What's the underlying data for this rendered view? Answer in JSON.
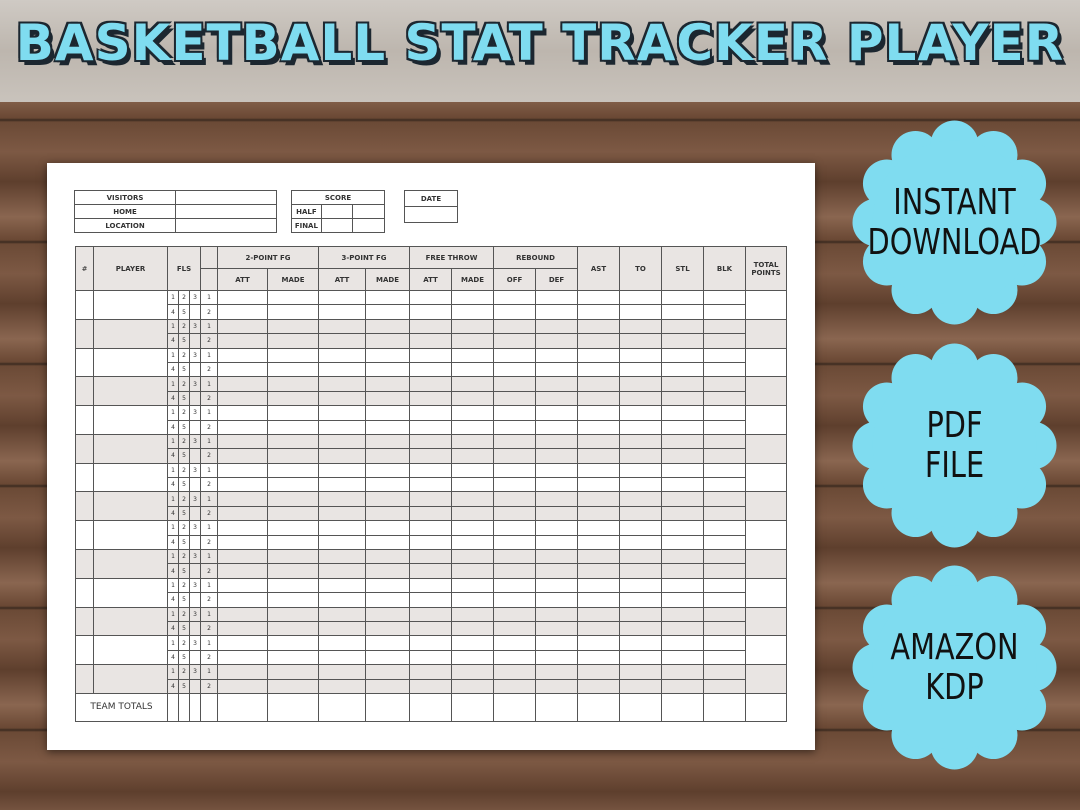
{
  "title": "BASKETBALL STAT TRACKER PLAYER",
  "colors": {
    "accent": "#7fdcf0",
    "shade": "#e9e5e3"
  },
  "info": {
    "visitors": "VISITORS",
    "home": "HOME",
    "location": "LOCATION"
  },
  "score": {
    "label": "SCORE",
    "half": "HALF",
    "final": "FINAL"
  },
  "date": {
    "label": "DATE"
  },
  "table": {
    "num": "#",
    "player": "PLAYER",
    "fls": "FLS",
    "groups": [
      "2-POINT FG",
      "3-POINT FG",
      "FREE THROW",
      "REBOUND"
    ],
    "sub": [
      "ATT",
      "MADE",
      "ATT",
      "MADE",
      "ATT",
      "MADE",
      "OFF",
      "DEF"
    ],
    "singles": [
      "AST",
      "TO",
      "STL",
      "BLK"
    ],
    "total_line1": "TOTAL",
    "total_line2": "POINTS",
    "fouls_row1": [
      "1",
      "2",
      "3"
    ],
    "fouls_row2": [
      "4",
      "5",
      ""
    ],
    "period": [
      "1",
      "2"
    ],
    "player_rows": 14,
    "team_totals": "TEAM TOTALS"
  },
  "badges": [
    {
      "line1": "INSTANT",
      "line2": "DOWNLOAD"
    },
    {
      "line1": "PDF",
      "line2": "FILE"
    },
    {
      "line1": "AMAZON",
      "line2": "KDP"
    }
  ]
}
